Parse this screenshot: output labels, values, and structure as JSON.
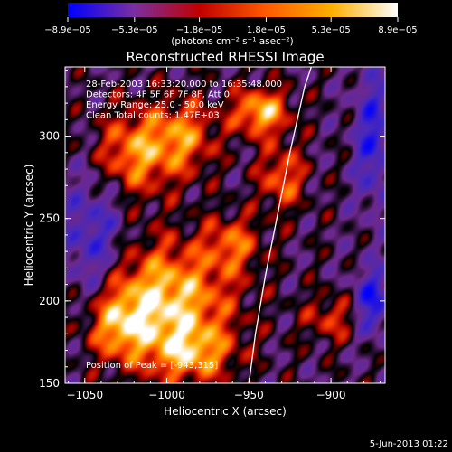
{
  "chart_data": {
    "type": "heatmap",
    "title": "Reconstructed RHESSI Image",
    "xlabel": "Heliocentric X (arcsec)",
    "ylabel": "Heliocentric Y (arcsec)",
    "xlim": [
      -1062,
      -867
    ],
    "ylim": [
      150,
      342
    ],
    "x_ticks": [
      -1050,
      -1000,
      -950,
      -900
    ],
    "y_ticks": [
      150,
      200,
      250,
      300
    ],
    "x_tick_labels": [
      "−1050",
      "−1000",
      "−950",
      "−900"
    ],
    "y_tick_labels": [
      "150",
      "200",
      "250",
      "300"
    ],
    "colorbar": {
      "range": [
        -8.9e-05,
        8.9e-05
      ],
      "ticks": [
        -8.9e-05,
        -5.3e-05,
        -1.8e-05,
        1.8e-05,
        5.3e-05,
        8.9e-05
      ],
      "tick_labels": [
        "−8.9e−05",
        "−5.3e−05",
        "−1.8e−05",
        "1.8e−05",
        "5.3e−05",
        "8.9e−05"
      ],
      "unit_label": "(photons cm⁻² s⁻¹ asec⁻²)",
      "colors": [
        "#0000ff",
        "#7a2fa0",
        "#c00000",
        "#ff5a00",
        "#ffb000",
        "#ffffff"
      ]
    },
    "info_lines": [
      "28-Feb-2003 16:33:20.000 to 16:35:48.000",
      "Detectors: 4F 5F 6F 7F 8F, Att 0",
      "Energy Range: 25.0 - 50.0 keV",
      "Clean     Total counts: 1.47E+03"
    ],
    "peak_label": "Position of Peak = [-943,315]",
    "peak_position": [
      -943,
      315
    ],
    "limb_points": [
      [
        -950,
        150
      ],
      [
        -946,
        180
      ],
      [
        -940,
        215
      ],
      [
        -933,
        250
      ],
      [
        -925,
        290
      ],
      [
        -916,
        330
      ],
      [
        -912,
        342
      ]
    ],
    "sources": [
      {
        "x": -1002,
        "y": 200,
        "amp": 1.0,
        "sx": 28,
        "sy": 24
      },
      {
        "x": -1030,
        "y": 185,
        "amp": 0.6,
        "sx": 12,
        "sy": 14
      },
      {
        "x": -985,
        "y": 168,
        "amp": 0.65,
        "sx": 18,
        "sy": 12
      },
      {
        "x": -1020,
        "y": 290,
        "amp": 0.75,
        "sx": 16,
        "sy": 18
      },
      {
        "x": -990,
        "y": 300,
        "amp": 0.65,
        "sx": 14,
        "sy": 16
      },
      {
        "x": -960,
        "y": 235,
        "amp": 0.55,
        "sx": 12,
        "sy": 12
      },
      {
        "x": -943,
        "y": 315,
        "amp": 0.9,
        "sx": 12,
        "sy": 10
      },
      {
        "x": -930,
        "y": 275,
        "amp": 0.6,
        "sx": 10,
        "sy": 14
      },
      {
        "x": -900,
        "y": 190,
        "amp": 0.45,
        "sx": 12,
        "sy": 10
      },
      {
        "x": -1045,
        "y": 235,
        "amp": -0.55,
        "sx": 14,
        "sy": 30
      },
      {
        "x": -875,
        "y": 300,
        "amp": -0.6,
        "sx": 8,
        "sy": 30
      },
      {
        "x": -875,
        "y": 200,
        "amp": -0.7,
        "sx": 8,
        "sy": 14
      }
    ]
  },
  "footer_date": "5-Jun-2013 01:22"
}
